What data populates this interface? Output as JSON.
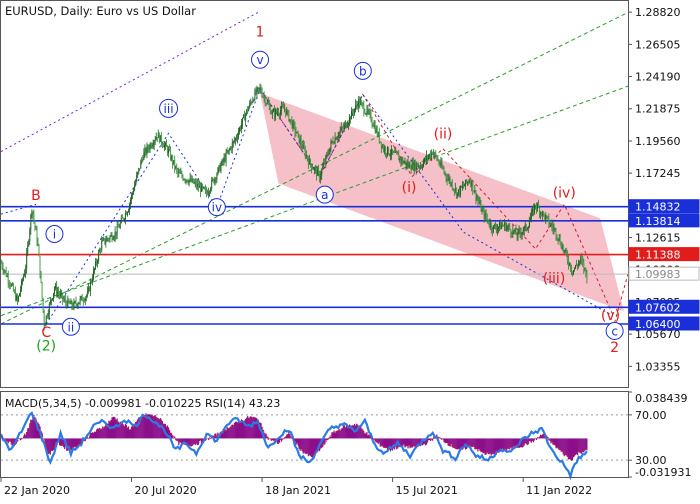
{
  "chart_data": {
    "type": "candlestick",
    "symbol_header": "EURUSD, Daily:  Euro vs US Dollar",
    "price_axis": {
      "range": [
        1.0187,
        1.2962
      ],
      "ticks": [
        "1.28820",
        "1.26505",
        "1.24190",
        "1.21875",
        "1.19560",
        "1.17245",
        "1.14930",
        "1.12615",
        "1.10300",
        "1.07985",
        "1.05670",
        "1.03355"
      ]
    },
    "time_axis": {
      "labels": [
        {
          "text": "22 Jan 2020",
          "bar": 0
        },
        {
          "text": "20 Jul 2020",
          "bar": 127
        },
        {
          "text": "18 Jan 2021",
          "bar": 254
        },
        {
          "text": "15 Jul 2021",
          "bar": 381
        },
        {
          "text": "11 Jan 2022",
          "bar": 508
        }
      ],
      "total_bars": 610
    },
    "price_path": [
      [
        0,
        1.108
      ],
      [
        8,
        1.095
      ],
      [
        16,
        1.08
      ],
      [
        24,
        1.105
      ],
      [
        30,
        1.148
      ],
      [
        36,
        1.12
      ],
      [
        42,
        1.064
      ],
      [
        52,
        1.09
      ],
      [
        62,
        1.08
      ],
      [
        70,
        1.077
      ],
      [
        84,
        1.085
      ],
      [
        98,
        1.122
      ],
      [
        112,
        1.13
      ],
      [
        124,
        1.148
      ],
      [
        138,
        1.185
      ],
      [
        152,
        1.2
      ],
      [
        163,
        1.188
      ],
      [
        172,
        1.172
      ],
      [
        186,
        1.166
      ],
      [
        200,
        1.158
      ],
      [
        214,
        1.178
      ],
      [
        228,
        1.197
      ],
      [
        238,
        1.215
      ],
      [
        246,
        1.228
      ],
      [
        252,
        1.233
      ],
      [
        264,
        1.215
      ],
      [
        276,
        1.219
      ],
      [
        288,
        1.2
      ],
      [
        300,
        1.18
      ],
      [
        310,
        1.17
      ],
      [
        322,
        1.195
      ],
      [
        336,
        1.208
      ],
      [
        348,
        1.224
      ],
      [
        360,
        1.212
      ],
      [
        372,
        1.19
      ],
      [
        384,
        1.185
      ],
      [
        396,
        1.178
      ],
      [
        408,
        1.178
      ],
      [
        420,
        1.188
      ],
      [
        432,
        1.172
      ],
      [
        444,
        1.158
      ],
      [
        456,
        1.168
      ],
      [
        468,
        1.145
      ],
      [
        478,
        1.133
      ],
      [
        490,
        1.135
      ],
      [
        502,
        1.128
      ],
      [
        512,
        1.134
      ],
      [
        520,
        1.15
      ],
      [
        530,
        1.14
      ],
      [
        540,
        1.13
      ],
      [
        548,
        1.116
      ],
      [
        556,
        1.102
      ],
      [
        564,
        1.11
      ],
      [
        570,
        1.099
      ]
    ],
    "horizontal_levels": [
      {
        "value": 1.14832,
        "label": "1.14832",
        "color": "#1a2fd8"
      },
      {
        "value": 1.13814,
        "label": "1.13814",
        "color": "#1a2fd8"
      },
      {
        "value": 1.11388,
        "label": "1.11388",
        "color": "#e21b1b"
      },
      {
        "value": 1.09983,
        "label": "1.09983",
        "color": "#bbbbbb"
      },
      {
        "value": 1.07602,
        "label": "1.07602",
        "color": "#1a2fd8"
      },
      {
        "value": 1.064,
        "label": "1.06400",
        "color": "#1a2fd8"
      }
    ],
    "wave_labels": [
      {
        "text": "1",
        "bar": 252,
        "price": 1.274,
        "color": "#e21b1b",
        "circled": false
      },
      {
        "text": "v",
        "bar": 252,
        "price": 1.254,
        "color": "#1a2fd8",
        "circled": true
      },
      {
        "text": "b",
        "bar": 352,
        "price": 1.246,
        "color": "#1a2fd8",
        "circled": true
      },
      {
        "text": "iii",
        "bar": 163,
        "price": 1.219,
        "color": "#1a2fd8",
        "circled": true
      },
      {
        "text": "(ii)",
        "bar": 430,
        "price": 1.2005,
        "color": "#e21b1b",
        "circled": false
      },
      {
        "text": "(iv)",
        "bar": 548,
        "price": 1.158,
        "color": "#e21b1b",
        "circled": false
      },
      {
        "text": "a",
        "bar": 315,
        "price": 1.157,
        "color": "#1a2fd8",
        "circled": true
      },
      {
        "text": "(i)",
        "bar": 397,
        "price": 1.162,
        "color": "#e21b1b",
        "circled": false
      },
      {
        "text": "iv",
        "bar": 210,
        "price": 1.148,
        "color": "#1a2fd8",
        "circled": true
      },
      {
        "text": "B",
        "bar": 34,
        "price": 1.1565,
        "color": "#e21b1b",
        "circled": false
      },
      {
        "text": "i",
        "bar": 52,
        "price": 1.1287,
        "color": "#1a2fd8",
        "circled": true
      },
      {
        "text": "(iii)",
        "bar": 538,
        "price": 1.0968,
        "color": "#e21b1b",
        "circled": false
      },
      {
        "text": "ii",
        "bar": 68,
        "price": 1.062,
        "color": "#1a2fd8",
        "circled": true
      },
      {
        "text": "C",
        "bar": 44,
        "price": 1.058,
        "color": "#e21b1b",
        "circled": false
      },
      {
        "text": "(2)",
        "bar": 44,
        "price": 1.048,
        "color": "#1aa31a",
        "circled": false
      },
      {
        "text": "(v)",
        "bar": 593,
        "price": 1.07,
        "color": "#e21b1b",
        "circled": false
      },
      {
        "text": "c",
        "bar": 597,
        "price": 1.059,
        "color": "#1a2fd8",
        "circled": true
      },
      {
        "text": "2",
        "bar": 597,
        "price": 1.047,
        "color": "#e21b1b",
        "circled": false
      }
    ],
    "channel_polygon": [
      [
        252,
        1.23
      ],
      [
        583,
        1.14
      ],
      [
        606,
        1.073
      ],
      [
        270,
        1.165
      ]
    ],
    "trend_lines": [
      {
        "from": [
          0,
          1.188
        ],
        "to": [
          250,
          1.288
        ],
        "color": "#7b22d8",
        "style": "dotted"
      },
      {
        "from": [
          0,
          1.07
        ],
        "to": [
          610,
          1.235
        ],
        "color": "#2f9a2f",
        "style": "dashed"
      },
      {
        "from": [
          0,
          1.064
        ],
        "to": [
          610,
          1.288
        ],
        "color": "#2f9a2f",
        "style": "dashed"
      },
      {
        "from": [
          0,
          1.143
        ],
        "to": [
          34,
          1.15
        ],
        "color": "#1a2fd8",
        "style": "dotted"
      }
    ],
    "indicator_panel": {
      "title": "MACD(5,34,5) -0.009981 -0.010225 RSI(14) 43.23",
      "axis_labels": [
        "0.038439",
        "70.00",
        "30.00",
        "-0.031931"
      ],
      "axis_values": [
        0.038439,
        0.0195,
        -0.018,
        -0.031931
      ],
      "range": [
        -0.031931,
        0.038439
      ],
      "macd_color": "#8b0f8b",
      "rsi_color": "#2a7be8",
      "macd": [
        [
          0,
          0.002
        ],
        [
          12,
          -0.006
        ],
        [
          24,
          0.004
        ],
        [
          32,
          0.02
        ],
        [
          38,
          0.01
        ],
        [
          46,
          -0.014
        ],
        [
          56,
          -0.004
        ],
        [
          66,
          -0.01
        ],
        [
          76,
          -0.006
        ],
        [
          88,
          0.004
        ],
        [
          100,
          0.01
        ],
        [
          110,
          0.018
        ],
        [
          118,
          0.012
        ],
        [
          126,
          0.008
        ],
        [
          134,
          0.016
        ],
        [
          142,
          0.02
        ],
        [
          152,
          0.018
        ],
        [
          162,
          0.01
        ],
        [
          172,
          -0.004
        ],
        [
          182,
          -0.006
        ],
        [
          192,
          -0.004
        ],
        [
          202,
          0.0
        ],
        [
          212,
          0.004
        ],
        [
          222,
          0.01
        ],
        [
          232,
          0.014
        ],
        [
          242,
          0.018
        ],
        [
          250,
          0.016
        ],
        [
          260,
          0.0
        ],
        [
          270,
          -0.004
        ],
        [
          280,
          0.004
        ],
        [
          292,
          -0.01
        ],
        [
          302,
          -0.016
        ],
        [
          312,
          -0.008
        ],
        [
          322,
          0.004
        ],
        [
          334,
          0.01
        ],
        [
          346,
          0.012
        ],
        [
          356,
          0.004
        ],
        [
          366,
          -0.004
        ],
        [
          378,
          -0.01
        ],
        [
          390,
          -0.006
        ],
        [
          402,
          -0.008
        ],
        [
          414,
          -0.004
        ],
        [
          424,
          0.002
        ],
        [
          434,
          -0.004
        ],
        [
          446,
          -0.01
        ],
        [
          458,
          -0.006
        ],
        [
          468,
          -0.012
        ],
        [
          478,
          -0.014
        ],
        [
          488,
          -0.01
        ],
        [
          498,
          -0.008
        ],
        [
          508,
          -0.006
        ],
        [
          518,
          -0.002
        ],
        [
          528,
          0.004
        ],
        [
          536,
          -0.004
        ],
        [
          546,
          -0.012
        ],
        [
          554,
          -0.018
        ],
        [
          562,
          -0.012
        ],
        [
          570,
          -0.01
        ]
      ],
      "rsi": [
        [
          0,
          0.002
        ],
        [
          10,
          -0.01
        ],
        [
          20,
          0.006
        ],
        [
          30,
          0.022
        ],
        [
          40,
          0.0
        ],
        [
          48,
          -0.02
        ],
        [
          58,
          0.004
        ],
        [
          68,
          -0.012
        ],
        [
          78,
          -0.004
        ],
        [
          90,
          0.01
        ],
        [
          100,
          0.014
        ],
        [
          110,
          0.008
        ],
        [
          120,
          0.016
        ],
        [
          130,
          0.01
        ],
        [
          140,
          0.02
        ],
        [
          150,
          0.014
        ],
        [
          160,
          0.006
        ],
        [
          170,
          -0.01
        ],
        [
          180,
          -0.004
        ],
        [
          190,
          -0.012
        ],
        [
          200,
          0.004
        ],
        [
          210,
          -0.002
        ],
        [
          220,
          0.012
        ],
        [
          230,
          0.016
        ],
        [
          240,
          0.01
        ],
        [
          250,
          0.014
        ],
        [
          260,
          -0.008
        ],
        [
          270,
          0.002
        ],
        [
          280,
          0.008
        ],
        [
          290,
          -0.014
        ],
        [
          300,
          -0.02
        ],
        [
          310,
          -0.006
        ],
        [
          320,
          0.008
        ],
        [
          332,
          0.012
        ],
        [
          344,
          0.006
        ],
        [
          354,
          0.014
        ],
        [
          364,
          -0.006
        ],
        [
          374,
          -0.012
        ],
        [
          386,
          -0.004
        ],
        [
          398,
          -0.014
        ],
        [
          410,
          -0.002
        ],
        [
          420,
          0.006
        ],
        [
          430,
          -0.01
        ],
        [
          442,
          -0.016
        ],
        [
          452,
          -0.004
        ],
        [
          462,
          -0.014
        ],
        [
          474,
          -0.018
        ],
        [
          486,
          -0.008
        ],
        [
          496,
          -0.012
        ],
        [
          506,
          -0.002
        ],
        [
          516,
          0.004
        ],
        [
          526,
          0.008
        ],
        [
          536,
          -0.01
        ],
        [
          546,
          -0.02
        ],
        [
          554,
          -0.03
        ],
        [
          562,
          -0.016
        ],
        [
          570,
          -0.012
        ]
      ]
    }
  }
}
